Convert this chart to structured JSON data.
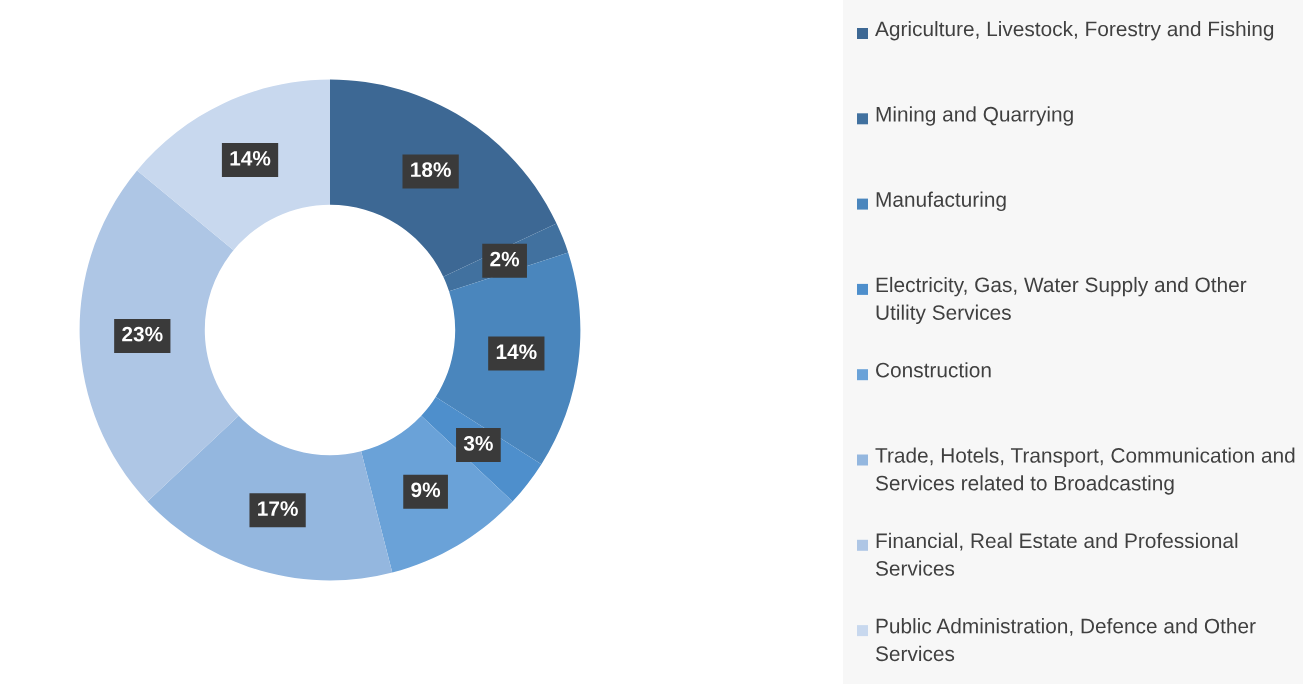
{
  "chart_data": {
    "type": "donut",
    "categories": [
      "Agriculture, Livestock, Forestry and Fishing",
      "Mining and Quarrying",
      "Manufacturing",
      "Electricity, Gas, Water Supply and Other Utility Services",
      "Construction",
      "Trade, Hotels, Transport, Communication and Services related to Broadcasting",
      "Financial, Real Estate and Professional Services",
      "Public Administration, Defence and Other Services"
    ],
    "values": [
      18,
      2,
      14,
      3,
      9,
      17,
      23,
      14
    ],
    "value_labels": [
      "18%",
      "2%",
      "14%",
      "3%",
      "9%",
      "17%",
      "23%",
      "14%"
    ],
    "colors": [
      "#3d6894",
      "#41719f",
      "#4a86bd",
      "#4e8fcc",
      "#6aa2d8",
      "#94b7df",
      "#aec6e5",
      "#c8d8ee"
    ],
    "legend": "right"
  }
}
